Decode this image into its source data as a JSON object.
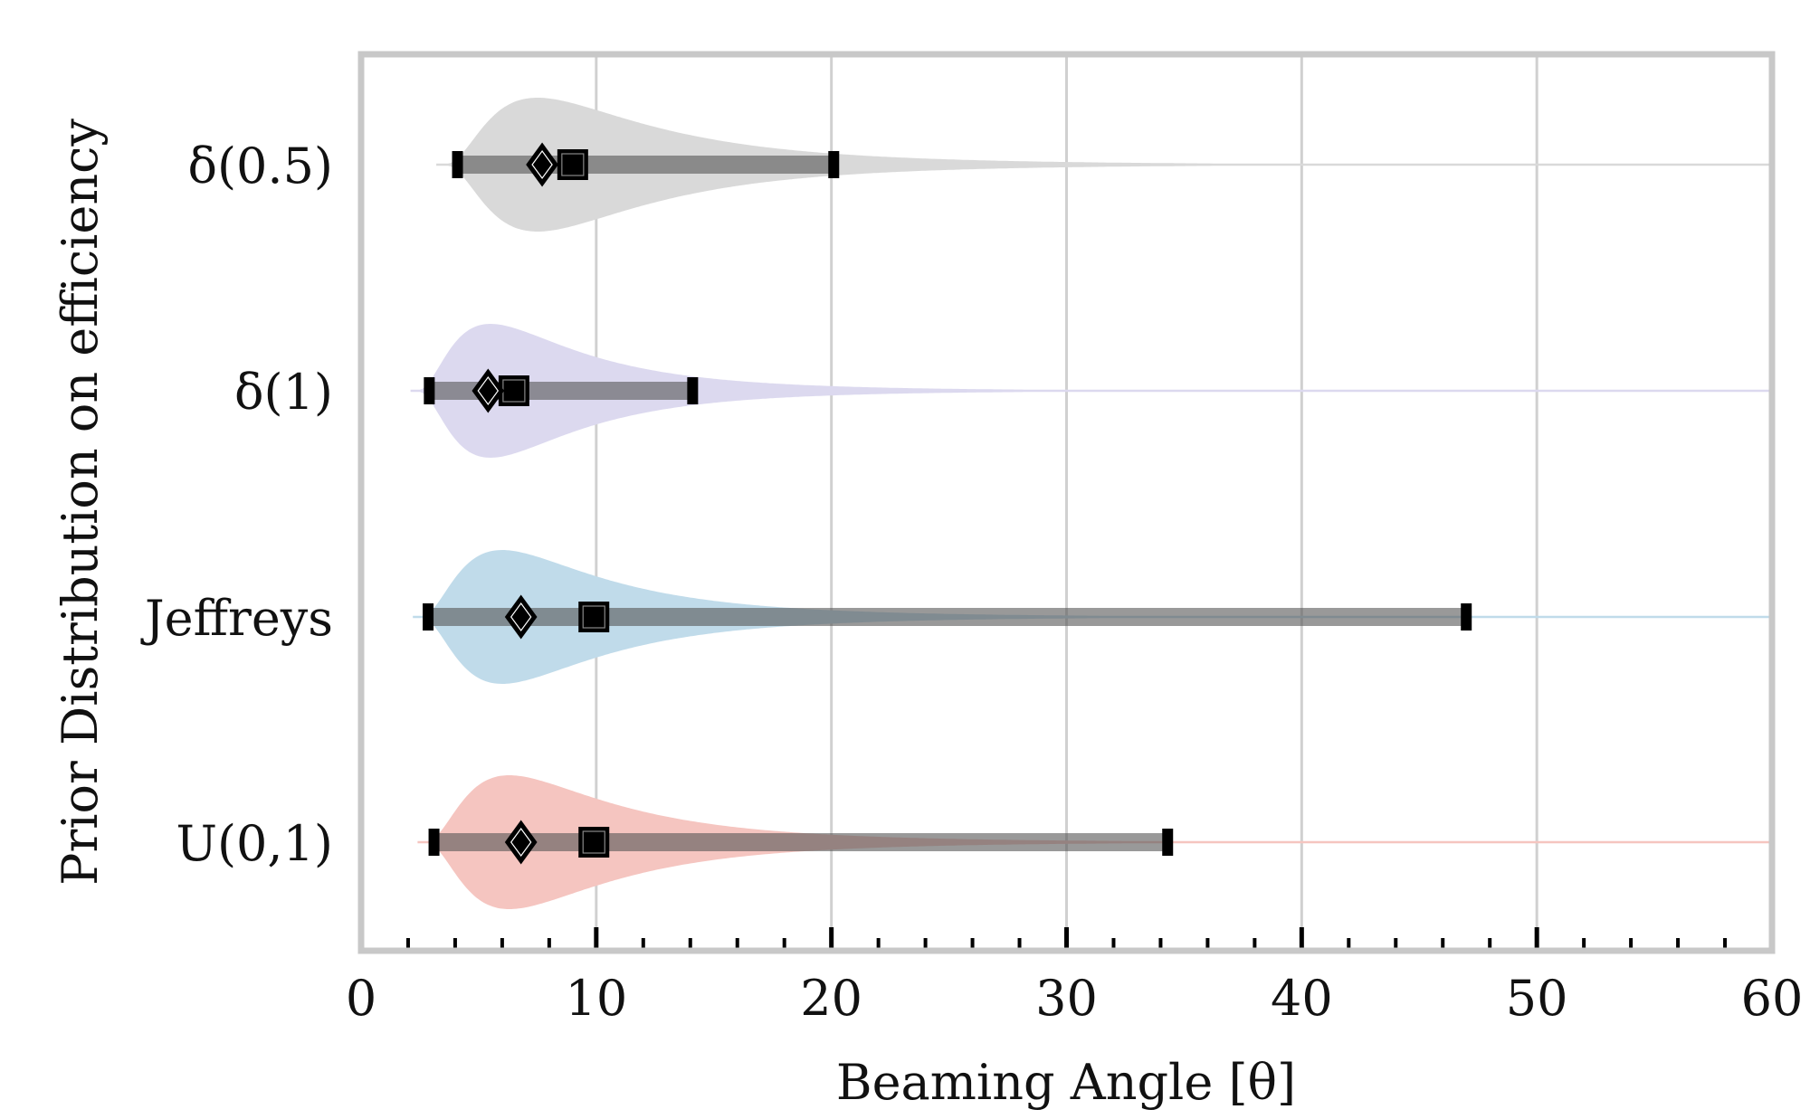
{
  "chart_data": {
    "type": "violin",
    "xlabel": "Beaming Angle [θ]",
    "ylabel": "Prior Distribution on efficiency",
    "xlim": [
      0,
      60
    ],
    "xticks": [
      "0",
      "10",
      "20",
      "30",
      "40",
      "50",
      "60"
    ],
    "grid": "vertical",
    "categories": [
      "δ(0.5)",
      "δ(1)",
      "Jeffreys",
      "U(0,1)"
    ],
    "series": [
      {
        "category": "δ(0.5)",
        "color": "#d9d9d9",
        "distribution_start": 3.2,
        "distribution_mode": 7.5,
        "interval": [
          4.1,
          20.1
        ],
        "diamond_marker": 7.7,
        "square_marker": 9.0
      },
      {
        "category": "δ(1)",
        "color": "#dcd9ef",
        "distribution_start": 2.1,
        "distribution_mode": 5.5,
        "interval": [
          2.9,
          14.1
        ],
        "diamond_marker": 5.4,
        "square_marker": 6.5
      },
      {
        "category": "Jeffreys",
        "color": "#c0dbea",
        "distribution_start": 2.2,
        "distribution_mode": 6.0,
        "interval": [
          2.85,
          47.0
        ],
        "diamond_marker": 6.8,
        "square_marker": 9.9
      },
      {
        "category": "U(0,1)",
        "color": "#f5c5c0",
        "distribution_start": 2.4,
        "distribution_mode": 6.3,
        "interval": [
          3.1,
          34.3
        ],
        "diamond_marker": 6.8,
        "square_marker": 9.9
      }
    ]
  }
}
